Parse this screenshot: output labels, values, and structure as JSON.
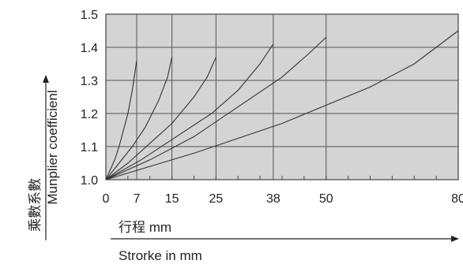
{
  "chart_data": {
    "type": "line",
    "xlabel_cn": "行程 mm",
    "xlabel_en": "Strorke in mm",
    "ylabel_cn": "乘數系數",
    "ylabel_en": "Munplier coefficienl",
    "x_ticks": [
      "0",
      "7",
      "15",
      "25",
      "38",
      "50",
      "80"
    ],
    "x_tick_values": [
      0,
      7,
      15,
      25,
      38,
      50,
      80
    ],
    "y_ticks": [
      "1.0",
      "1.1",
      "1.2",
      "1.3",
      "1.4",
      "1.5"
    ],
    "y_tick_values": [
      1.0,
      1.1,
      1.2,
      1.3,
      1.4,
      1.5
    ],
    "xlim": [
      0,
      80
    ],
    "ylim": [
      1.0,
      1.5
    ],
    "grid": true,
    "background_color": "#d4d4d4",
    "line_color": "#333333",
    "series": [
      {
        "values": [
          [
            0,
            1.0
          ],
          [
            1,
            1.03
          ],
          [
            2,
            1.06
          ],
          [
            3,
            1.1
          ],
          [
            4,
            1.15
          ],
          [
            5,
            1.2
          ],
          [
            6,
            1.27
          ],
          [
            7,
            1.36
          ]
        ]
      },
      {
        "values": [
          [
            0,
            1.0
          ],
          [
            3,
            1.05
          ],
          [
            6,
            1.1
          ],
          [
            9,
            1.16
          ],
          [
            12,
            1.24
          ],
          [
            14,
            1.31
          ],
          [
            15,
            1.37
          ]
        ]
      },
      {
        "values": [
          [
            0,
            1.0
          ],
          [
            5,
            1.05
          ],
          [
            10,
            1.11
          ],
          [
            15,
            1.17
          ],
          [
            20,
            1.25
          ],
          [
            23,
            1.31
          ],
          [
            25,
            1.37
          ]
        ]
      },
      {
        "values": [
          [
            0,
            1.0
          ],
          [
            8,
            1.06
          ],
          [
            16,
            1.13
          ],
          [
            24,
            1.2
          ],
          [
            30,
            1.27
          ],
          [
            35,
            1.35
          ],
          [
            38,
            1.41
          ]
        ]
      },
      {
        "values": [
          [
            0,
            1.0
          ],
          [
            10,
            1.06
          ],
          [
            20,
            1.13
          ],
          [
            30,
            1.22
          ],
          [
            40,
            1.31
          ],
          [
            46,
            1.38
          ],
          [
            50,
            1.43
          ]
        ]
      },
      {
        "values": [
          [
            0,
            1.0
          ],
          [
            20,
            1.08
          ],
          [
            40,
            1.17
          ],
          [
            60,
            1.28
          ],
          [
            70,
            1.35
          ],
          [
            80,
            1.45
          ]
        ]
      }
    ]
  }
}
